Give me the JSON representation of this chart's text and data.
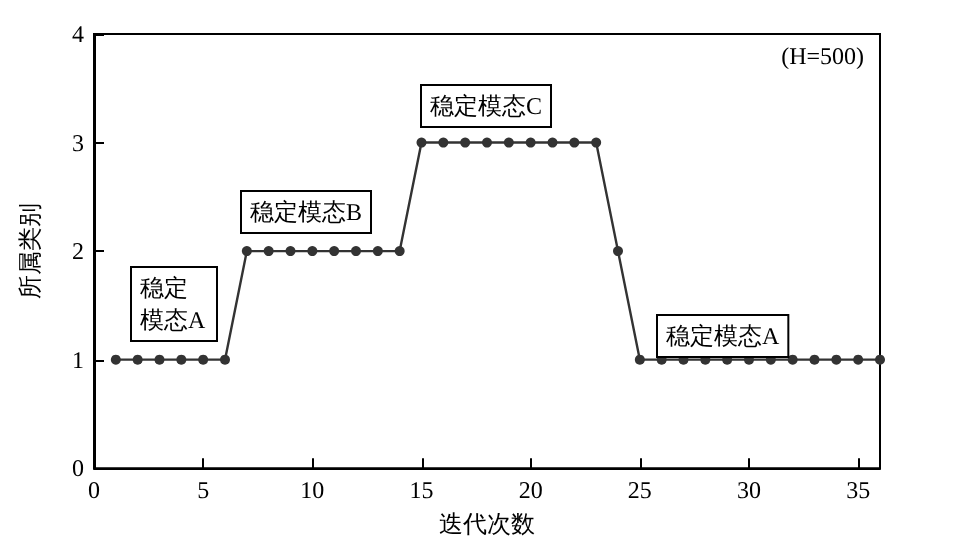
{
  "chart_data": {
    "type": "line",
    "xlabel": "迭代次数",
    "ylabel": "所属类别",
    "x": [
      1,
      2,
      3,
      4,
      5,
      6,
      7,
      8,
      9,
      10,
      11,
      12,
      13,
      14,
      15,
      16,
      17,
      18,
      19,
      20,
      21,
      22,
      23,
      24,
      25,
      26,
      27,
      28,
      29,
      30,
      31,
      32,
      33,
      34,
      35,
      36
    ],
    "series": [
      {
        "color": "#333333",
        "values": [
          1,
          1,
          1,
          1,
          1,
          1,
          2,
          2,
          2,
          2,
          2,
          2,
          2,
          2,
          3,
          3,
          3,
          3,
          3,
          3,
          3,
          3,
          3,
          2,
          1,
          1,
          1,
          1,
          1,
          1,
          1,
          1,
          1,
          1,
          1,
          1
        ]
      }
    ],
    "xlim": [
      0,
      36
    ],
    "xticks": [
      0,
      5,
      10,
      15,
      20,
      25,
      30,
      35
    ],
    "ylim": [
      0,
      4
    ],
    "yticks": [
      0,
      1,
      2,
      3,
      4
    ],
    "marker": "circle",
    "line_style": "solid",
    "grid": false,
    "annotations": [
      "稳定模态A",
      "稳定模态B",
      "稳定模态C",
      "稳定模态A",
      "(H=500)"
    ]
  }
}
